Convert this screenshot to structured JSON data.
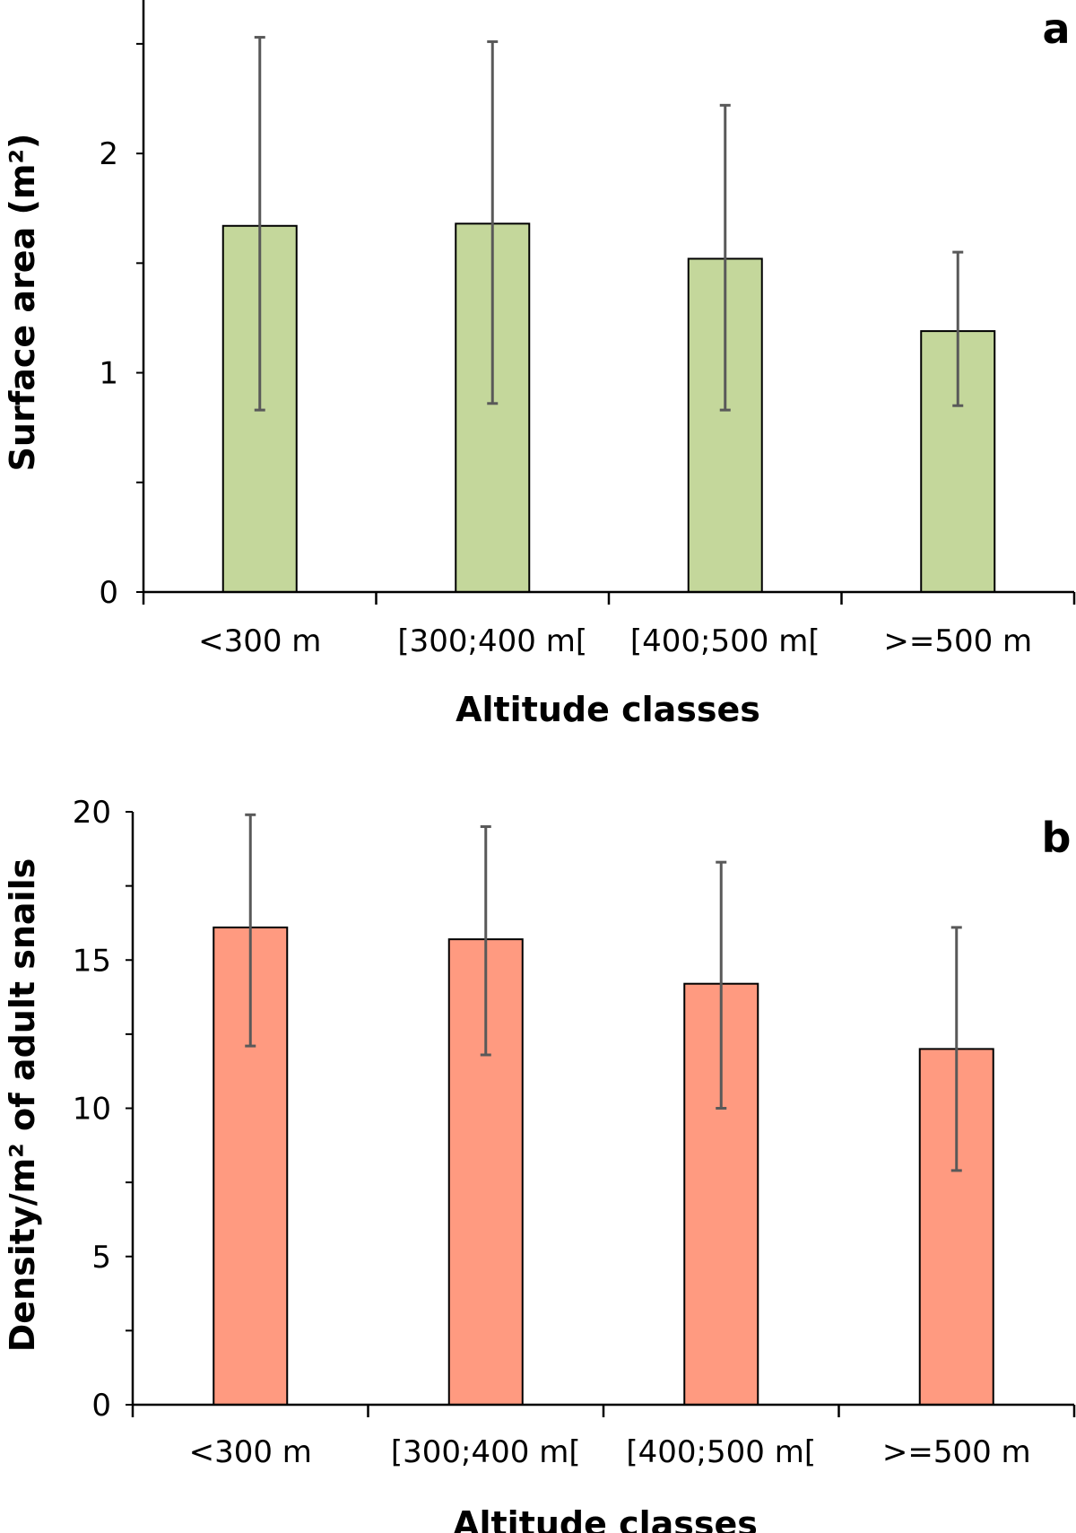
{
  "chart_data": [
    {
      "type": "bar",
      "panel": "a",
      "title": "",
      "xlabel": "Altitude classes",
      "ylabel": "Surface area (m²)",
      "categories": [
        "<300 m",
        "[300;400 m[",
        "[400;500 m[",
        ">=500 m"
      ],
      "values": [
        1.67,
        1.68,
        1.52,
        1.19
      ],
      "error_low": [
        0.83,
        0.86,
        0.83,
        0.85
      ],
      "error_high": [
        2.53,
        2.51,
        2.22,
        1.55
      ],
      "ylim": [
        0,
        2.7
      ],
      "yticks": [
        0,
        1,
        2
      ],
      "minor_step": 0.5,
      "grid": false,
      "bar_color": "#c4d79b",
      "error_color": "#595959"
    },
    {
      "type": "bar",
      "panel": "b",
      "title": "",
      "xlabel": "Altitude classes",
      "ylabel": "Density/m² of adult snails",
      "categories": [
        "<300 m",
        "[300;400 m[",
        "[400;500 m[",
        ">=500 m"
      ],
      "values": [
        16.1,
        15.7,
        14.2,
        12.0
      ],
      "error_low": [
        12.1,
        11.8,
        10.0,
        7.9
      ],
      "error_high": [
        19.9,
        19.5,
        18.3,
        16.1
      ],
      "ylim": [
        0,
        20
      ],
      "yticks": [
        0,
        5,
        10,
        15,
        20
      ],
      "minor_step": 2.5,
      "grid": false,
      "bar_color": "#ff9a80",
      "error_color": "#595959"
    }
  ]
}
